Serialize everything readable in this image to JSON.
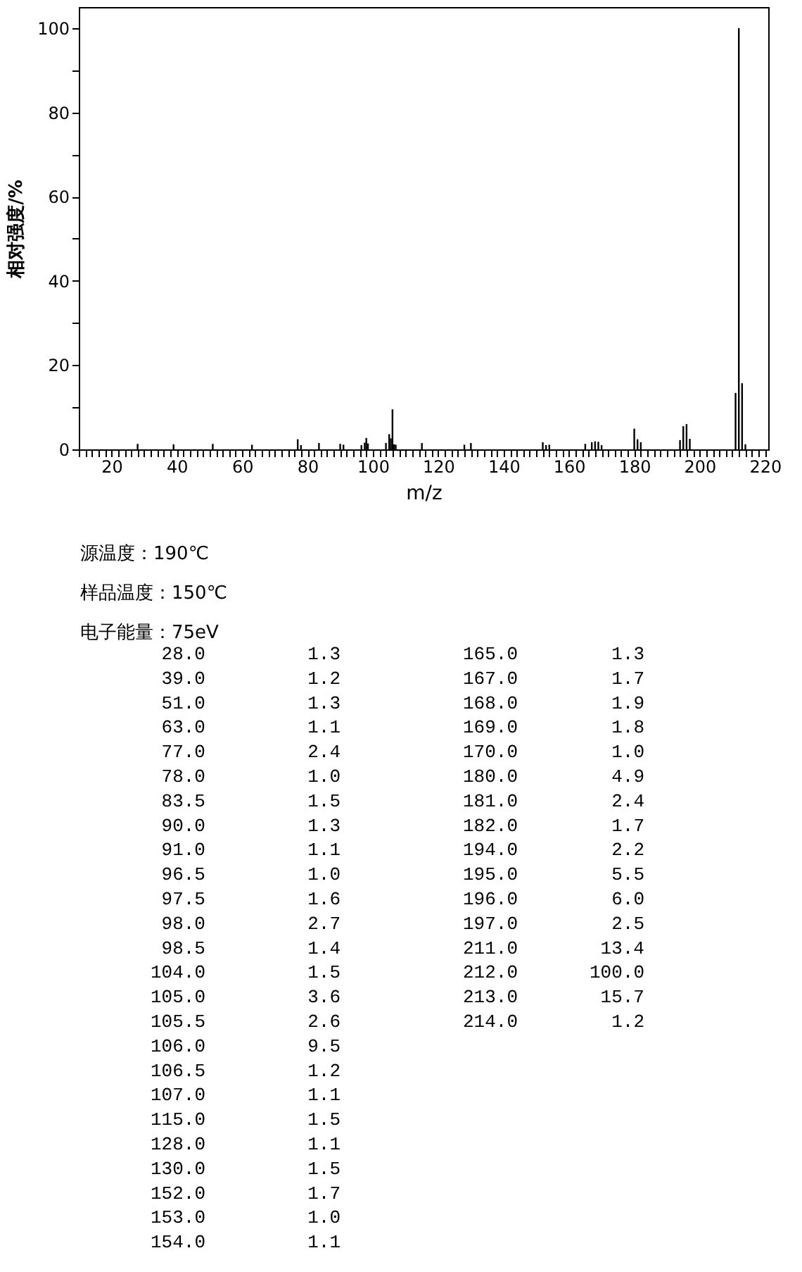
{
  "chart_data": [
    {
      "type": "bar",
      "xlabel": "m/z",
      "ylabel": "相对强度/%",
      "color": "#000000",
      "x": [
        28,
        39,
        51,
        63,
        77,
        78,
        83.5,
        90,
        91,
        96.5,
        97.5,
        98,
        98.5,
        104,
        105,
        105.5,
        106,
        106.5,
        107,
        115,
        128,
        130,
        152,
        153,
        154,
        165,
        167,
        168,
        169,
        170,
        180,
        181,
        182,
        194,
        195,
        196,
        197,
        211,
        212,
        213,
        214
      ],
      "values": [
        1.3,
        1.2,
        1.3,
        1.1,
        2.4,
        1.0,
        1.5,
        1.3,
        1.1,
        1.0,
        1.6,
        2.7,
        1.4,
        1.5,
        3.6,
        2.6,
        9.5,
        1.2,
        1.1,
        1.5,
        1.1,
        1.5,
        1.7,
        1.0,
        1.1,
        1.3,
        1.7,
        1.9,
        1.8,
        1.0,
        4.9,
        2.4,
        1.7,
        2.2,
        5.5,
        6.0,
        2.5,
        13.4,
        100.0,
        15.7,
        1.2
      ],
      "xlim": [
        10,
        221
      ],
      "ylim": [
        0,
        105
      ],
      "xticks": [
        {
          "value": 10,
          "label": null
        },
        {
          "value": 12,
          "label": null
        },
        {
          "value": 14,
          "label": null
        },
        {
          "value": 16,
          "label": null
        },
        {
          "value": 18,
          "label": null
        },
        20,
        {
          "value": 22,
          "label": null
        },
        {
          "value": 24,
          "label": null
        },
        {
          "value": 26,
          "label": null
        },
        {
          "value": 28,
          "label": null
        },
        {
          "value": 30,
          "label": null
        },
        {
          "value": 32,
          "label": null
        },
        {
          "value": 34,
          "label": null
        },
        {
          "value": 36,
          "label": null
        },
        {
          "value": 38,
          "label": null
        },
        40,
        {
          "value": 42,
          "label": null
        },
        {
          "value": 44,
          "label": null
        },
        {
          "value": 46,
          "label": null
        },
        {
          "value": 48,
          "label": null
        },
        {
          "value": 50,
          "label": null
        },
        {
          "value": 52,
          "label": null
        },
        {
          "value": 54,
          "label": null
        },
        {
          "value": 56,
          "label": null
        },
        {
          "value": 58,
          "label": null
        },
        60,
        {
          "value": 62,
          "label": null
        },
        {
          "value": 64,
          "label": null
        },
        {
          "value": 66,
          "label": null
        },
        {
          "value": 68,
          "label": null
        },
        {
          "value": 70,
          "label": null
        },
        {
          "value": 72,
          "label": null
        },
        {
          "value": 74,
          "label": null
        },
        {
          "value": 76,
          "label": null
        },
        {
          "value": 78,
          "label": null
        },
        80,
        {
          "value": 82,
          "label": null
        },
        {
          "value": 84,
          "label": null
        },
        {
          "value": 86,
          "label": null
        },
        {
          "value": 88,
          "label": null
        },
        {
          "value": 90,
          "label": null
        },
        {
          "value": 92,
          "label": null
        },
        {
          "value": 94,
          "label": null
        },
        {
          "value": 96,
          "label": null
        },
        {
          "value": 98,
          "label": null
        },
        100,
        {
          "value": 102,
          "label": null
        },
        {
          "value": 104,
          "label": null
        },
        {
          "value": 106,
          "label": null
        },
        {
          "value": 108,
          "label": null
        },
        {
          "value": 110,
          "label": null
        },
        {
          "value": 112,
          "label": null
        },
        {
          "value": 114,
          "label": null
        },
        {
          "value": 116,
          "label": null
        },
        {
          "value": 118,
          "label": null
        },
        120,
        {
          "value": 122,
          "label": null
        },
        {
          "value": 124,
          "label": null
        },
        {
          "value": 126,
          "label": null
        },
        {
          "value": 128,
          "label": null
        },
        {
          "value": 130,
          "label": null
        },
        {
          "value": 132,
          "label": null
        },
        {
          "value": 134,
          "label": null
        },
        {
          "value": 136,
          "label": null
        },
        {
          "value": 138,
          "label": null
        },
        140,
        {
          "value": 142,
          "label": null
        },
        {
          "value": 144,
          "label": null
        },
        {
          "value": 146,
          "label": null
        },
        {
          "value": 148,
          "label": null
        },
        {
          "value": 150,
          "label": null
        },
        {
          "value": 152,
          "label": null
        },
        {
          "value": 154,
          "label": null
        },
        {
          "value": 156,
          "label": null
        },
        {
          "value": 158,
          "label": null
        },
        160,
        {
          "value": 162,
          "label": null
        },
        {
          "value": 164,
          "label": null
        },
        {
          "value": 166,
          "label": null
        },
        {
          "value": 168,
          "label": null
        },
        {
          "value": 170,
          "label": null
        },
        {
          "value": 172,
          "label": null
        },
        {
          "value": 174,
          "label": null
        },
        {
          "value": 176,
          "label": null
        },
        {
          "value": 178,
          "label": null
        },
        180,
        {
          "value": 182,
          "label": null
        },
        {
          "value": 184,
          "label": null
        },
        {
          "value": 186,
          "label": null
        },
        {
          "value": 188,
          "label": null
        },
        {
          "value": 190,
          "label": null
        },
        {
          "value": 192,
          "label": null
        },
        {
          "value": 194,
          "label": null
        },
        {
          "value": 196,
          "label": null
        },
        {
          "value": 198,
          "label": null
        },
        200,
        {
          "value": 202,
          "label": null
        },
        {
          "value": 204,
          "label": null
        },
        {
          "value": 206,
          "label": null
        },
        {
          "value": 208,
          "label": null
        },
        {
          "value": 210,
          "label": null
        },
        {
          "value": 212,
          "label": null
        },
        {
          "value": 214,
          "label": null
        },
        {
          "value": 216,
          "label": null
        },
        {
          "value": 218,
          "label": null
        },
        220
      ],
      "yticks": [
        0,
        {
          "value": 10,
          "label": null
        },
        20,
        {
          "value": 30,
          "label": null
        },
        40,
        {
          "value": 50,
          "label": null
        },
        60,
        {
          "value": 70,
          "label": null
        },
        80,
        {
          "value": 90,
          "label": null
        },
        100
      ],
      "grid": false,
      "annotations": [
        "源温度：190℃",
        "样品温度：150℃",
        "电子能量：75eV"
      ]
    },
    {
      "type": "other",
      "value_labels": [
        "1.3",
        "1.2",
        "1.3",
        "1.1",
        "2.4",
        "1.0",
        "1.5",
        "1.3",
        "1.1",
        "1.0",
        "1.6",
        "2.7",
        "1.4",
        "1.5",
        "3.6",
        "2.6",
        "9.5",
        "1.2",
        "1.1",
        "1.5",
        "1.1",
        "1.5",
        "1.7",
        "1.0",
        "1.1",
        "1.3",
        "1.7",
        "1.9",
        "1.8",
        "1.0",
        "4.9",
        "2.4",
        "1.7",
        "2.2",
        "5.5",
        "6.0",
        "2.5",
        "13.4",
        "100.0",
        "15.7",
        "1.2"
      ],
      "categories": [
        "28.0",
        "39.0",
        "51.0",
        "63.0",
        "77.0",
        "78.0",
        "83.5",
        "90.0",
        "91.0",
        "96.5",
        "97.5",
        "98.0",
        "98.5",
        "104.0",
        "105.0",
        "105.5",
        "106.0",
        "106.5",
        "107.0",
        "115.0",
        "128.0",
        "130.0",
        "152.0",
        "153.0",
        "154.0",
        "165.0",
        "167.0",
        "168.0",
        "169.0",
        "170.0",
        "180.0",
        "181.0",
        "182.0",
        "194.0",
        "195.0",
        "196.0",
        "197.0",
        "211.0",
        "212.0",
        "213.0",
        "214.0"
      ],
      "values": [
        1.3,
        1.2,
        1.3,
        1.1,
        2.4,
        1.0,
        1.5,
        1.3,
        1.1,
        1.0,
        1.6,
        2.7,
        1.4,
        1.5,
        3.6,
        2.6,
        9.5,
        1.2,
        1.1,
        1.5,
        1.1,
        1.5,
        1.7,
        1.0,
        1.1,
        1.3,
        1.7,
        1.9,
        1.8,
        1.0,
        4.9,
        2.4,
        1.7,
        2.2,
        5.5,
        6.0,
        2.5,
        13.4,
        100.0,
        15.7,
        1.2
      ]
    }
  ]
}
